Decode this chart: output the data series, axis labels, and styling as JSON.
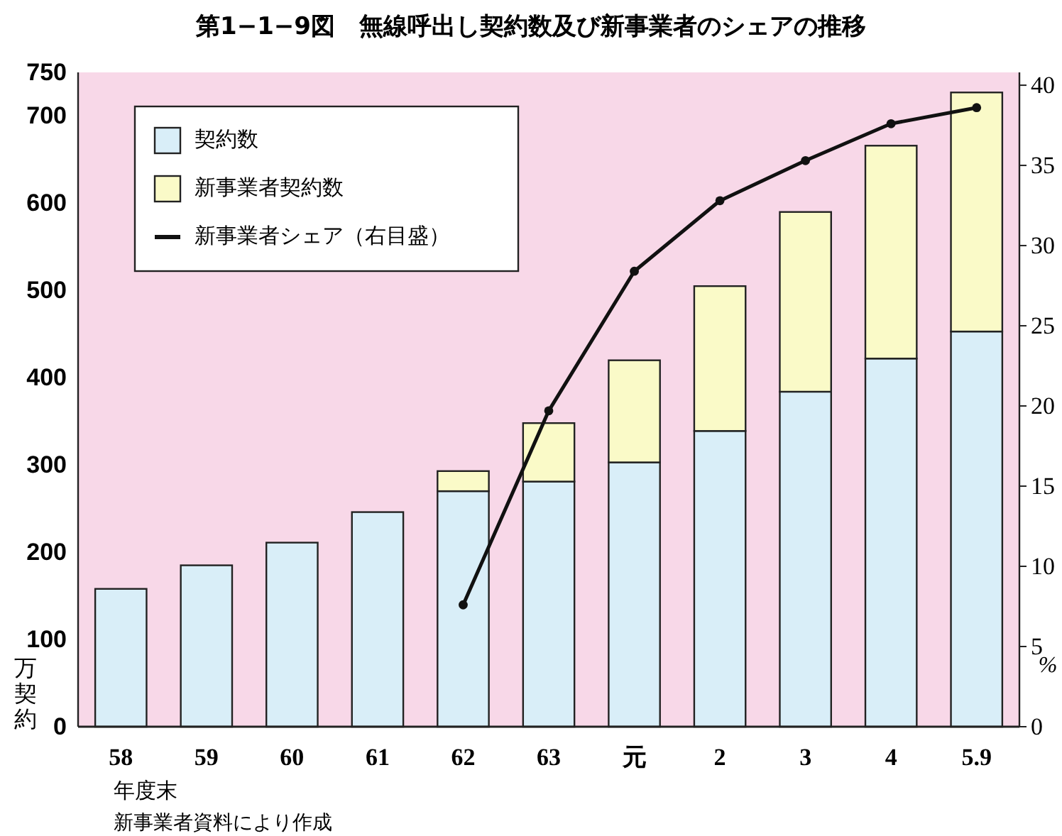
{
  "chart_data": {
    "type": "bar",
    "title": "第1−1−9図　無線呼出し契約数及び新事業者のシェアの推移",
    "categories": [
      "58",
      "59",
      "60",
      "61",
      "62",
      "63",
      "元",
      "2",
      "3",
      "4",
      "5.9"
    ],
    "series": [
      {
        "name": "契約数",
        "color": "#d9eef8",
        "values": [
          158,
          185,
          211,
          246,
          270,
          281,
          303,
          339,
          384,
          422,
          453
        ]
      },
      {
        "name": "新事業者契約数",
        "color": "#fafac8",
        "values": [
          null,
          null,
          null,
          null,
          23,
          67,
          117,
          166,
          206,
          244,
          274
        ]
      },
      {
        "name": "新事業者シェア（右目盛）",
        "type": "line",
        "axis": "y2",
        "color": "#111111",
        "values": [
          null,
          null,
          null,
          null,
          7.6,
          19.7,
          28.4,
          32.8,
          35.3,
          37.6,
          38.6
        ]
      }
    ],
    "stacked": true,
    "marker": "circle",
    "legend": "top left",
    "ylim": [
      0,
      750
    ],
    "yticks": [
      0,
      100,
      200,
      300,
      400,
      500,
      600,
      700,
      750
    ],
    "y2lim": [
      0,
      40.8
    ],
    "y2ticks": [
      0,
      5,
      10,
      15,
      20,
      25,
      30,
      35,
      40
    ],
    "xlabel": "年度末",
    "ylabel": "万契約",
    "y2label": "%",
    "annotations": [
      "新事業者資料により作成"
    ]
  }
}
